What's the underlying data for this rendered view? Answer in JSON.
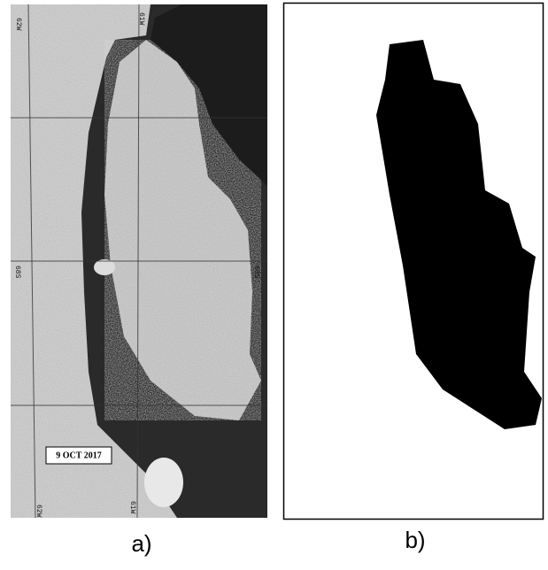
{
  "panel_a": {
    "label": "a)",
    "date": "9 OCT 2017",
    "grid_labels": [
      "62W",
      "61W",
      "68S",
      "68S",
      "62W",
      "61W"
    ]
  },
  "panel_b": {
    "label": "b)"
  }
}
